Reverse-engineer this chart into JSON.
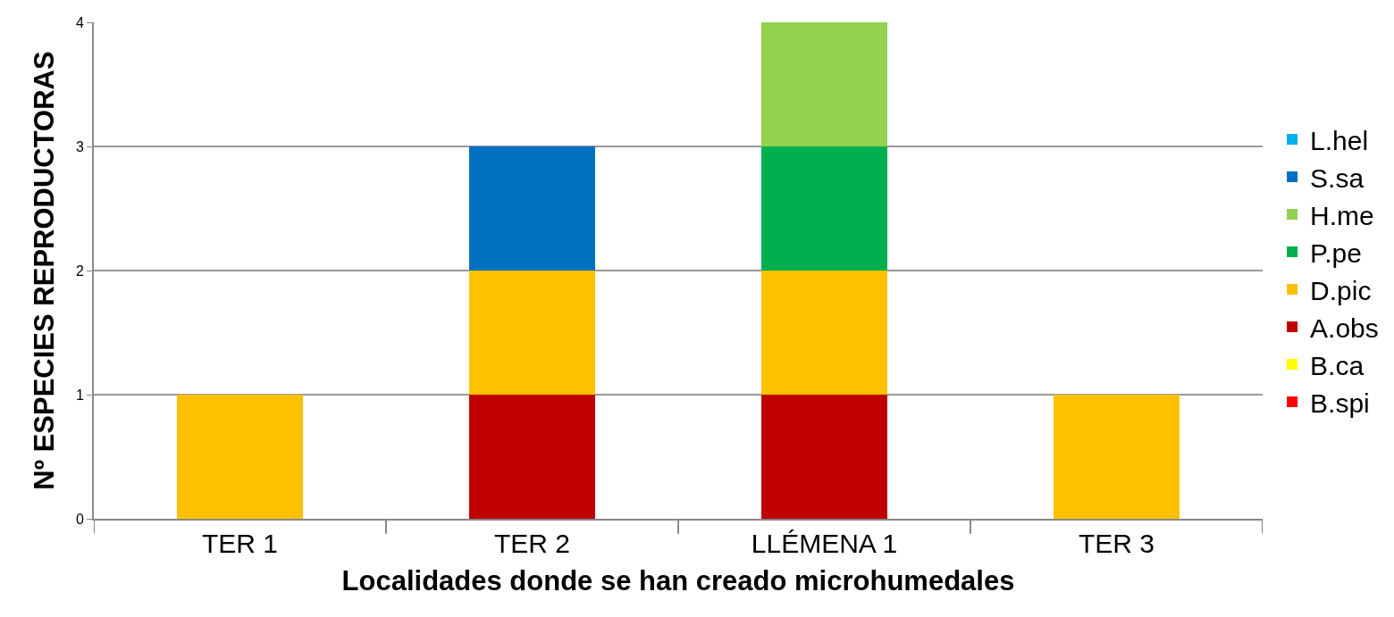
{
  "chart_data": {
    "type": "bar",
    "stacked": true,
    "xlabel": "Localidades donde se han creado microhumedales",
    "ylabel": "Nº ESPECIES REPRODUCTORAS",
    "categories": [
      "TER 1",
      "TER 2",
      "LLÉMENA 1",
      "TER 3"
    ],
    "series": [
      {
        "name": "B.spi",
        "color": "#ff0000",
        "values": [
          0,
          0,
          0,
          0
        ]
      },
      {
        "name": "B.ca",
        "color": "#ffff00",
        "values": [
          0,
          0,
          0,
          0
        ]
      },
      {
        "name": "A.obs",
        "color": "#c00000",
        "values": [
          0,
          1,
          1,
          0
        ]
      },
      {
        "name": "D.pic",
        "color": "#ffc000",
        "values": [
          1,
          1,
          1,
          1
        ]
      },
      {
        "name": "P.pe",
        "color": "#00b050",
        "values": [
          0,
          0,
          1,
          0
        ]
      },
      {
        "name": "H.me",
        "color": "#92d050",
        "values": [
          0,
          0,
          1,
          0
        ]
      },
      {
        "name": "S.sa",
        "color": "#0070c0",
        "values": [
          0,
          1,
          0,
          0
        ]
      },
      {
        "name": "L.hel",
        "color": "#00b0f0",
        "values": [
          0,
          0,
          0,
          0
        ]
      }
    ],
    "ylim": [
      0,
      4
    ],
    "yticks": [
      0,
      1,
      2,
      3,
      4
    ],
    "grid": "y",
    "legend": "right"
  }
}
